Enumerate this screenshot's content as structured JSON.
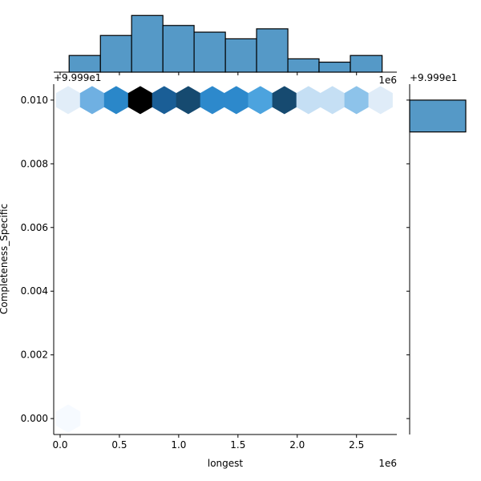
{
  "chart_data": {
    "type": "hexbin jointplot",
    "xlabel": "longest",
    "ylabel": "Completeness_Specific",
    "x_offset_text": "1e6",
    "y_offset_text": "+9.999e1",
    "xlim": [
      -54000,
      2840000
    ],
    "ylim": [
      -0.0005,
      0.0105
    ],
    "x_ticks": [
      0,
      500000,
      1000000,
      1500000,
      2000000,
      2500000
    ],
    "x_tick_labels": [
      "0.0",
      "0.5",
      "1.0",
      "1.5",
      "2.0",
      "2.5"
    ],
    "y_ticks": [
      0,
      0.002,
      0.004,
      0.006,
      0.008,
      0.01
    ],
    "y_tick_labels": [
      "0.000",
      "0.002",
      "0.004",
      "0.006",
      "0.008",
      "0.010"
    ],
    "colormap": "Blues",
    "hexbins": [
      {
        "x": 68000,
        "y": 0.01,
        "color": "#e1edf8"
      },
      {
        "x": 270000,
        "y": 0.01,
        "color": "#6fb0e2"
      },
      {
        "x": 473000,
        "y": 0.01,
        "color": "#2a87c9"
      },
      {
        "x": 676000,
        "y": 0.01,
        "color": "#000000"
      },
      {
        "x": 878000,
        "y": 0.01,
        "color": "#1a5e96"
      },
      {
        "x": 1081000,
        "y": 0.01,
        "color": "#164a70"
      },
      {
        "x": 1284000,
        "y": 0.01,
        "color": "#2d89cc"
      },
      {
        "x": 1486000,
        "y": 0.01,
        "color": "#2d89cc"
      },
      {
        "x": 1689000,
        "y": 0.01,
        "color": "#4ca3de"
      },
      {
        "x": 1892000,
        "y": 0.01,
        "color": "#164a70"
      },
      {
        "x": 2095000,
        "y": 0.01,
        "color": "#c5dff4"
      },
      {
        "x": 2297000,
        "y": 0.01,
        "color": "#c5dff4"
      },
      {
        "x": 2500000,
        "y": 0.01,
        "color": "#8dc3ea"
      },
      {
        "x": 2703000,
        "y": 0.01,
        "color": "#dfecf8"
      },
      {
        "x": 68000,
        "y": 0.0,
        "color": "#f6faff"
      }
    ],
    "top_histogram": {
      "bin_edges": [
        76000,
        340000,
        603000,
        867000,
        1130000,
        1394000,
        1657000,
        1921000,
        2184000,
        2448000,
        2716000
      ],
      "counts": [
        5,
        11,
        17,
        14,
        12,
        10,
        13,
        4,
        3,
        5
      ],
      "color": "#5599c7"
    },
    "right_histogram": {
      "bins": [
        {
          "y0": 0.009,
          "y1": 0.01,
          "count": 1
        }
      ],
      "color": "#5599c7"
    }
  }
}
